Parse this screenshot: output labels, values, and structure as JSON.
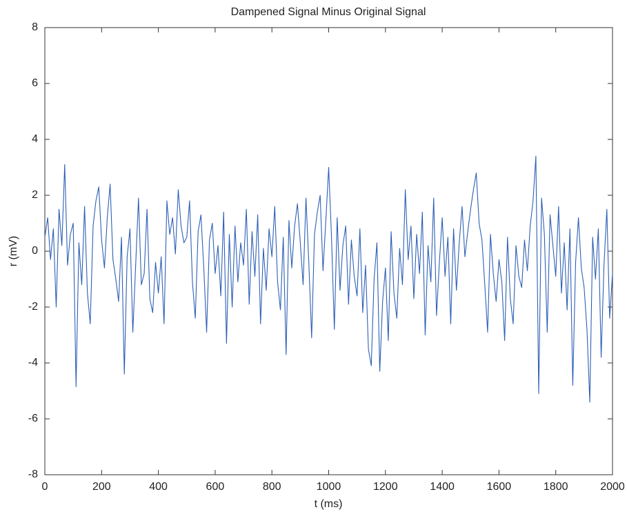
{
  "chart_data": {
    "type": "line",
    "title": "Dampened Signal Minus Original Signal",
    "x_label": "t (ms)",
    "y_label": "r (mV)",
    "xlim": [
      0,
      2000
    ],
    "xticks": [
      0,
      200,
      400,
      600,
      800,
      1000,
      1200,
      1400,
      1600,
      1800,
      2000
    ],
    "ylim": [
      -8,
      8
    ],
    "yticks": [
      -8,
      -6,
      -4,
      -2,
      0,
      2,
      4,
      6,
      8
    ],
    "x": [
      0,
      10,
      20,
      30,
      40,
      50,
      60,
      70,
      80,
      90,
      100,
      110,
      120,
      130,
      140,
      150,
      160,
      170,
      180,
      190,
      200,
      210,
      220,
      230,
      240,
      250,
      260,
      270,
      280,
      290,
      300,
      310,
      320,
      330,
      340,
      350,
      360,
      370,
      380,
      390,
      400,
      410,
      420,
      430,
      440,
      450,
      460,
      470,
      480,
      490,
      500,
      510,
      520,
      530,
      540,
      550,
      560,
      570,
      580,
      590,
      600,
      610,
      620,
      630,
      640,
      650,
      660,
      670,
      680,
      690,
      700,
      710,
      720,
      730,
      740,
      750,
      760,
      770,
      780,
      790,
      800,
      810,
      820,
      830,
      840,
      850,
      860,
      870,
      880,
      890,
      900,
      910,
      920,
      930,
      940,
      950,
      960,
      970,
      980,
      990,
      1000,
      1010,
      1020,
      1030,
      1040,
      1050,
      1060,
      1070,
      1080,
      1090,
      1100,
      1110,
      1120,
      1130,
      1140,
      1150,
      1160,
      1170,
      1180,
      1190,
      1200,
      1210,
      1220,
      1230,
      1240,
      1250,
      1260,
      1270,
      1280,
      1290,
      1300,
      1310,
      1320,
      1330,
      1340,
      1350,
      1360,
      1370,
      1380,
      1390,
      1400,
      1410,
      1420,
      1430,
      1440,
      1450,
      1460,
      1470,
      1480,
      1490,
      1500,
      1510,
      1520,
      1530,
      1540,
      1550,
      1560,
      1570,
      1580,
      1590,
      1600,
      1610,
      1620,
      1630,
      1640,
      1650,
      1660,
      1670,
      1680,
      1690,
      1700,
      1710,
      1720,
      1730,
      1740,
      1750,
      1760,
      1770,
      1780,
      1790,
      1800,
      1810,
      1820,
      1830,
      1840,
      1850,
      1860,
      1870,
      1880,
      1890,
      1900,
      1910,
      1920,
      1930,
      1940,
      1950,
      1960,
      1970,
      1980,
      1990,
      2000
    ],
    "series": [
      {
        "color": "#2c5fb5",
        "values": [
          0.5,
          1.2,
          -0.3,
          0.8,
          -2.0,
          1.5,
          0.2,
          3.1,
          -0.5,
          0.6,
          1.0,
          -4.85,
          0.3,
          -1.2,
          1.6,
          -1.5,
          -2.6,
          0.9,
          1.8,
          2.3,
          0.4,
          -0.6,
          1.2,
          2.4,
          -0.3,
          -1.0,
          -1.8,
          0.5,
          -4.4,
          -0.2,
          0.8,
          -2.9,
          -0.5,
          1.9,
          -1.2,
          -0.8,
          1.5,
          -1.7,
          -2.2,
          -0.4,
          -1.5,
          -0.2,
          -2.6,
          1.8,
          0.6,
          1.2,
          -0.1,
          2.2,
          0.9,
          0.3,
          0.5,
          1.8,
          -1.1,
          -2.4,
          0.7,
          1.3,
          -0.6,
          -2.9,
          0.4,
          1.0,
          -0.8,
          0.2,
          -1.6,
          1.4,
          -3.3,
          0.6,
          -2.0,
          0.9,
          -1.1,
          0.3,
          -0.5,
          1.5,
          -1.9,
          0.7,
          -0.9,
          1.3,
          -2.6,
          0.1,
          -1.4,
          0.8,
          -0.2,
          1.6,
          -1.1,
          -2.1,
          0.5,
          -3.7,
          1.1,
          -0.6,
          0.9,
          1.7,
          0.3,
          -1.2,
          1.9,
          -0.4,
          -3.1,
          0.6,
          1.4,
          2.0,
          -0.7,
          1.1,
          3.0,
          0.5,
          -2.8,
          1.2,
          -1.4,
          0.2,
          0.9,
          -1.9,
          0.4,
          -0.9,
          -1.6,
          0.8,
          -2.2,
          -0.5,
          -3.5,
          -4.1,
          -1.0,
          0.3,
          -4.3,
          -1.8,
          -0.6,
          -3.2,
          0.7,
          -1.5,
          -2.4,
          0.1,
          -1.2,
          2.2,
          -0.3,
          0.9,
          -1.7,
          0.6,
          -0.8,
          1.4,
          -3.0,
          0.2,
          -1.1,
          1.9,
          -2.3,
          -0.4,
          1.2,
          -0.9,
          0.5,
          -2.6,
          0.8,
          -1.4,
          0.3,
          1.6,
          -0.2,
          0.7,
          1.5,
          2.2,
          2.8,
          1.0,
          0.4,
          -1.2,
          -2.9,
          0.6,
          -0.8,
          -1.8,
          -0.3,
          -1.1,
          -3.2,
          0.5,
          -1.7,
          -2.6,
          0.2,
          -0.9,
          -1.3,
          0.4,
          -0.7,
          0.9,
          1.8,
          3.4,
          -5.1,
          1.9,
          0.6,
          -2.9,
          1.3,
          0.2,
          -0.9,
          1.6,
          -1.5,
          0.3,
          -2.1,
          0.8,
          -4.8,
          -0.4,
          1.2,
          -0.6,
          -1.3,
          -2.8,
          -5.4,
          0.5,
          -1.0,
          0.8,
          -3.8,
          -0.5,
          1.5,
          -2.4,
          -0.8
        ]
      }
    ]
  }
}
